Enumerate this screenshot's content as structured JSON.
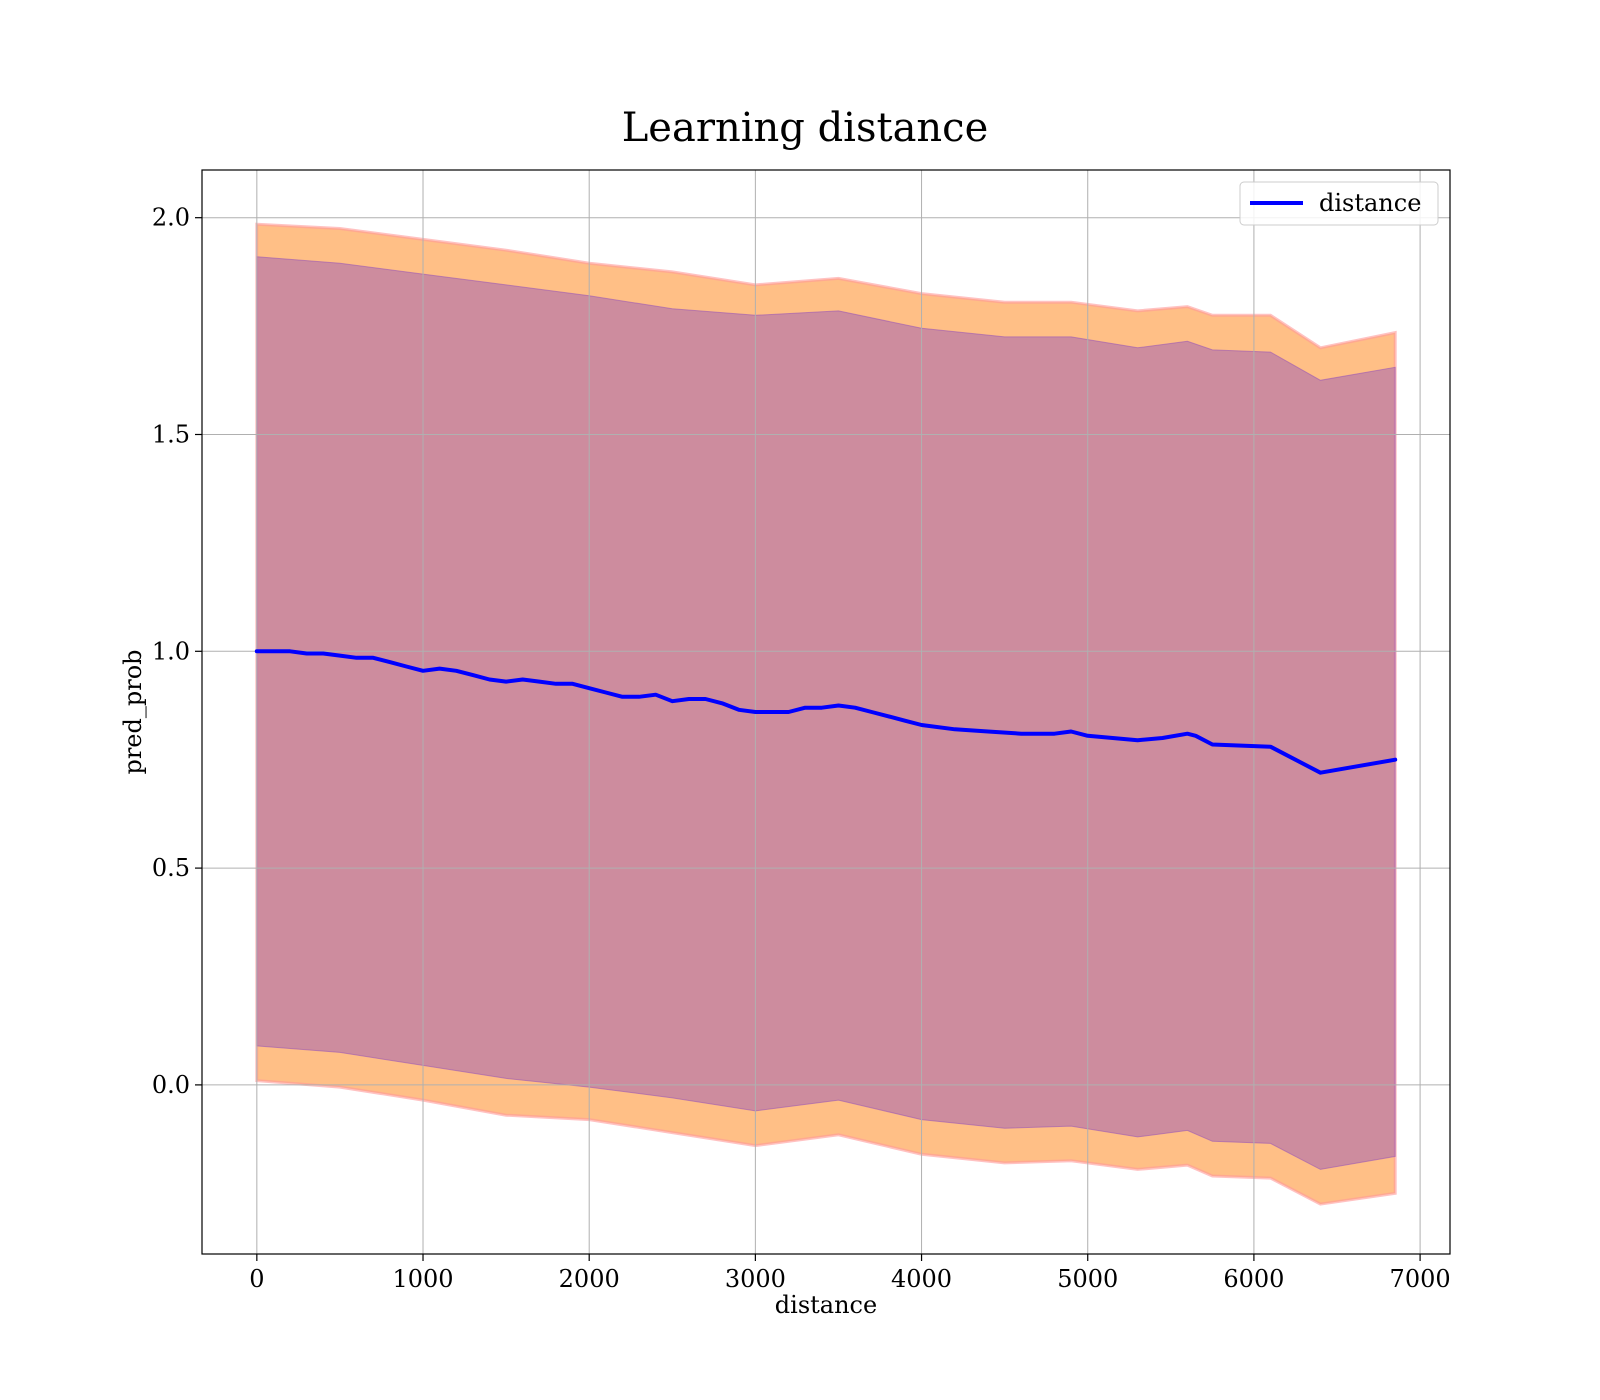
{
  "chart_data": {
    "type": "line",
    "title": "Learning distance",
    "xlabel": "distance",
    "ylabel": "pred_prob",
    "xlim": [
      -330,
      7180
    ],
    "ylim": [
      -0.39,
      2.11
    ],
    "xticks": [
      0,
      1000,
      2000,
      3000,
      4000,
      5000,
      6000,
      7000
    ],
    "xtick_labels": [
      "0",
      "1000",
      "2000",
      "3000",
      "4000",
      "5000",
      "6000",
      "7000"
    ],
    "yticks": [
      0.0,
      0.5,
      1.0,
      1.5,
      2.0
    ],
    "ytick_labels": [
      "0.0",
      "0.5",
      "1.0",
      "1.5",
      "2.0"
    ],
    "grid": true,
    "legend": {
      "position": "top-right",
      "entries": [
        "distance"
      ]
    },
    "series": [
      {
        "name": "distance",
        "color": "#0000ff",
        "x": [
          0,
          100,
          200,
          300,
          400,
          500,
          600,
          700,
          800,
          900,
          1000,
          1100,
          1200,
          1300,
          1400,
          1500,
          1600,
          1700,
          1800,
          1900,
          2000,
          2100,
          2200,
          2300,
          2400,
          2500,
          2600,
          2700,
          2800,
          2900,
          3000,
          3100,
          3200,
          3300,
          3400,
          3500,
          3600,
          3700,
          3800,
          3900,
          4000,
          4200,
          4400,
          4600,
          4800,
          4900,
          5000,
          5300,
          5450,
          5600,
          5650,
          5750,
          6100,
          6400,
          6850
        ],
        "y": [
          1.0,
          1.0,
          1.0,
          0.995,
          0.995,
          0.99,
          0.985,
          0.985,
          0.975,
          0.965,
          0.955,
          0.96,
          0.955,
          0.945,
          0.935,
          0.93,
          0.935,
          0.93,
          0.925,
          0.925,
          0.915,
          0.905,
          0.895,
          0.895,
          0.9,
          0.885,
          0.89,
          0.89,
          0.88,
          0.865,
          0.86,
          0.86,
          0.86,
          0.87,
          0.87,
          0.875,
          0.87,
          0.86,
          0.85,
          0.84,
          0.83,
          0.82,
          0.815,
          0.81,
          0.81,
          0.815,
          0.805,
          0.795,
          0.8,
          0.81,
          0.805,
          0.785,
          0.78,
          0.72,
          0.75
        ]
      }
    ],
    "bands": [
      {
        "color": "#ff7f0e",
        "outline": "#ff9999",
        "x": [
          0,
          500,
          1000,
          1500,
          2000,
          2500,
          3000,
          3500,
          4000,
          4500,
          4900,
          5300,
          5600,
          5750,
          6100,
          6400,
          6850
        ],
        "upper": [
          1.985,
          1.975,
          1.95,
          1.925,
          1.895,
          1.875,
          1.845,
          1.86,
          1.825,
          1.805,
          1.805,
          1.785,
          1.795,
          1.775,
          1.775,
          1.7,
          1.735
        ],
        "lower": [
          0.01,
          -0.005,
          -0.035,
          -0.07,
          -0.08,
          -0.11,
          -0.14,
          -0.115,
          -0.16,
          -0.18,
          -0.175,
          -0.195,
          -0.185,
          -0.21,
          -0.215,
          -0.275,
          -0.25
        ]
      },
      {
        "color": "#9b59b6",
        "x": [
          0,
          500,
          1000,
          1500,
          2000,
          2500,
          3000,
          3500,
          4000,
          4500,
          4900,
          5300,
          5600,
          5750,
          6100,
          6400,
          6850
        ],
        "upper": [
          1.91,
          1.895,
          1.87,
          1.845,
          1.82,
          1.79,
          1.775,
          1.785,
          1.745,
          1.725,
          1.725,
          1.7,
          1.715,
          1.695,
          1.69,
          1.625,
          1.655
        ],
        "lower": [
          0.09,
          0.075,
          0.045,
          0.015,
          -0.005,
          -0.03,
          -0.06,
          -0.035,
          -0.08,
          -0.1,
          -0.095,
          -0.12,
          -0.105,
          -0.13,
          -0.135,
          -0.195,
          -0.165
        ]
      }
    ]
  }
}
